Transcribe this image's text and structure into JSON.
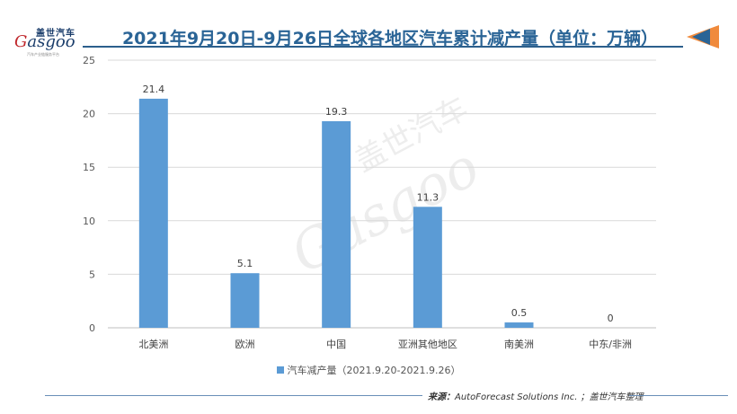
{
  "logo": {
    "cn": "盖世汽车",
    "en_prefix": "G",
    "en_rest": "asgoo",
    "tagline": "汽车产业链服务平台"
  },
  "header": {
    "title": "2021年9月20日-9月26日全球各地区汽车累计减产量（单位：万辆）"
  },
  "chart_data": {
    "type": "bar",
    "title": "2021年9月20日-9月26日全球各地区汽车累计减产量（单位：万辆）",
    "categories": [
      "北美洲",
      "欧洲",
      "中国",
      "亚洲其他地区",
      "南美洲",
      "中东/非洲"
    ],
    "series": [
      {
        "name": "汽车减产量（2021.9.20-2021.9.26）",
        "values": [
          21.4,
          5.1,
          19.3,
          11.3,
          0.5,
          0
        ],
        "color": "#5b9bd5"
      }
    ],
    "data_labels": [
      "21.4",
      "5.1",
      "19.3",
      "11.3",
      "0.5",
      "0"
    ],
    "y_ticks": [
      "0",
      "5",
      "10",
      "15",
      "20",
      "25"
    ],
    "ylim": [
      0,
      25
    ],
    "xlabel": "",
    "ylabel": "",
    "grid": true,
    "legend_position": "bottom"
  },
  "legend": {
    "label": "汽车减产量（2021.9.20-2021.9.26）"
  },
  "footer": {
    "source_label": "来源：",
    "source_text": "AutoForecast Solutions Inc. ；",
    "source_org": "盖世汽车整理"
  },
  "watermark": {
    "cn": "盖世汽车",
    "en": "Gasgoo"
  }
}
